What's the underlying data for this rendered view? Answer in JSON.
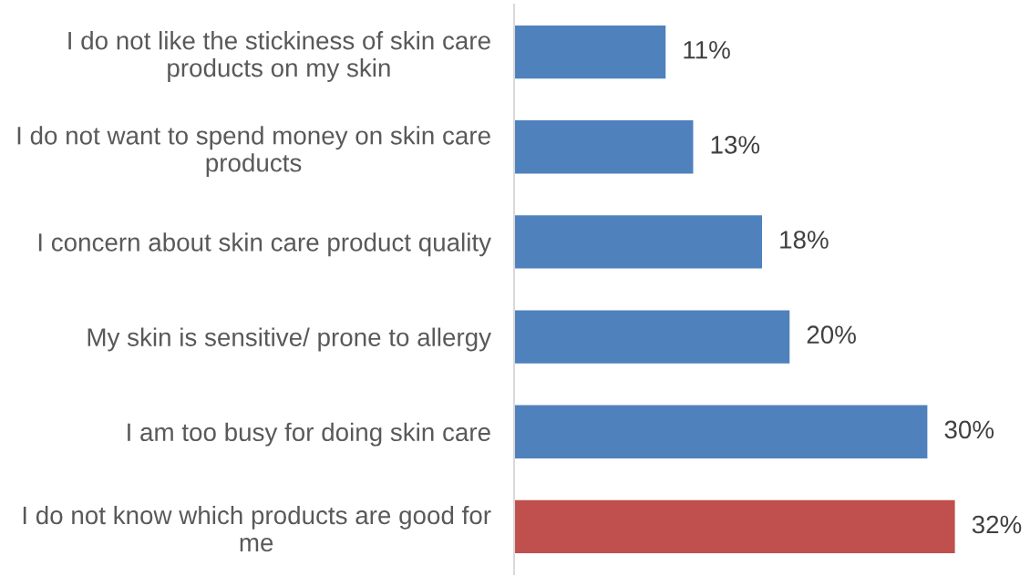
{
  "chart_data": {
    "type": "bar",
    "orientation": "horizontal",
    "categories": [
      "I do not like the stickiness of skin care products on my skin",
      "I do not want to spend money on skin care products",
      "I concern about skin care product quality",
      "My skin is sensitive/ prone to allergy",
      "I am too busy for doing skin care",
      "I do not know which products are good for me"
    ],
    "values": [
      11,
      13,
      18,
      20,
      30,
      32
    ],
    "colors": [
      "#4f81bd",
      "#4f81bd",
      "#4f81bd",
      "#4f81bd",
      "#4f81bd",
      "#c0504d"
    ],
    "value_labels": [
      "11%",
      "13%",
      "18%",
      "20%",
      "30%",
      "32%"
    ],
    "tick_labels": "y"
  }
}
